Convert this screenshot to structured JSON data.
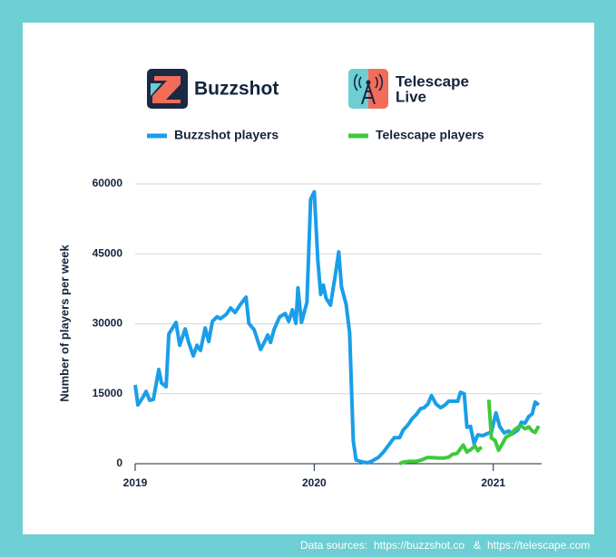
{
  "header": {
    "brands": [
      {
        "name": "Buzzshot"
      },
      {
        "lines": [
          "Telescape",
          "Live"
        ]
      }
    ]
  },
  "chart_data": {
    "type": "line",
    "y_label": "Number of players per week",
    "xlim": [
      2019,
      2021.27
    ],
    "xticks": [
      2019,
      2020,
      2021
    ],
    "ylim": [
      0,
      60000
    ],
    "yticks": [
      0,
      15000,
      30000,
      45000,
      60000
    ],
    "grid": true,
    "series": [
      {
        "name": "Buzzshot players",
        "color": "#1a9ee8",
        "x": [
          2019.0,
          2019.015,
          2019.046,
          2019.061,
          2019.081,
          2019.102,
          2019.132,
          2019.147,
          2019.173,
          2019.188,
          2019.228,
          2019.249,
          2019.279,
          2019.299,
          2019.325,
          2019.345,
          2019.365,
          2019.391,
          2019.411,
          2019.431,
          2019.457,
          2019.477,
          2019.508,
          2019.533,
          2019.558,
          2019.589,
          2019.619,
          2019.635,
          2019.665,
          2019.701,
          2019.721,
          2019.741,
          2019.756,
          2019.777,
          2019.807,
          2019.838,
          2019.858,
          2019.878,
          2019.898,
          2019.909,
          2019.929,
          2019.959,
          2019.98,
          2020.0,
          2020.02,
          2020.036,
          2020.051,
          2020.066,
          2020.091,
          2020.117,
          2020.137,
          2020.152,
          2020.178,
          2020.198,
          2020.218,
          2020.234,
          2020.264,
          2020.299,
          2020.325,
          2020.36,
          2020.391,
          2020.426,
          2020.447,
          2020.477,
          2020.497,
          2020.523,
          2020.548,
          2020.569,
          2020.594,
          2020.614,
          2020.635,
          2020.655,
          2020.68,
          2020.706,
          2020.731,
          2020.751,
          2020.777,
          2020.802,
          2020.817,
          2020.838,
          2020.853,
          2020.873,
          2020.893,
          2020.914,
          2020.939,
          2020.964,
          2020.99,
          2021.015,
          2021.036,
          2021.061,
          2021.086,
          2021.107,
          2021.137,
          2021.157,
          2021.178,
          2021.198,
          2021.218,
          2021.234,
          2021.254
        ],
        "values": [
          16900,
          12600,
          14400,
          15500,
          13600,
          13800,
          20200,
          17300,
          16500,
          27800,
          30300,
          25400,
          28900,
          26000,
          23100,
          25400,
          24300,
          29100,
          26200,
          30500,
          31500,
          31100,
          32000,
          33400,
          32400,
          34200,
          35700,
          30100,
          28700,
          24500,
          26000,
          27600,
          26000,
          28900,
          31500,
          32200,
          30500,
          33000,
          30100,
          37700,
          30300,
          34600,
          56700,
          58300,
          43700,
          36300,
          38300,
          35500,
          34000,
          40200,
          45400,
          37900,
          34200,
          28000,
          4900,
          800,
          400,
          200,
          600,
          1400,
          2700,
          4500,
          5600,
          5600,
          7200,
          8300,
          9700,
          10500,
          11800,
          12000,
          12800,
          14600,
          12800,
          12000,
          12600,
          13400,
          13400,
          13400,
          15300,
          15000,
          7800,
          8000,
          4300,
          6200,
          6000,
          6400,
          6800,
          10900,
          8000,
          6600,
          7000,
          6400,
          7200,
          8900,
          8700,
          10100,
          10700,
          13200,
          12600
        ]
      },
      {
        "name": "Telescape players",
        "color": "#3ec93a",
        "x": [
          2020.477,
          2020.492,
          2020.528,
          2020.569,
          2020.599,
          2020.629,
          2020.66,
          2020.69,
          2020.721,
          2020.751,
          2020.772,
          2020.797,
          2020.832,
          2020.853,
          2020.873,
          2020.898,
          2020.914,
          2020.934,
          2020.954,
          2020.975,
          2020.99,
          2021.01,
          2021.03,
          2021.051,
          2021.071,
          2021.096,
          2021.117,
          2021.137,
          2021.157,
          2021.178,
          2021.198,
          2021.218,
          2021.234,
          2021.254
        ],
        "values": [
          0,
          300,
          500,
          500,
          800,
          1300,
          1300,
          1200,
          1200,
          1400,
          2000,
          2200,
          4000,
          2500,
          3000,
          3800,
          2800,
          3600,
          null,
          13700,
          5500,
          5000,
          2900,
          4300,
          5700,
          6200,
          7200,
          7800,
          8100,
          7500,
          7900,
          7000,
          6700,
          8100
        ]
      }
    ]
  },
  "footer": {
    "label": "Data sources:",
    "links": [
      "https://buzzshot.co",
      "https://telescape.com"
    ],
    "separator": "&"
  }
}
